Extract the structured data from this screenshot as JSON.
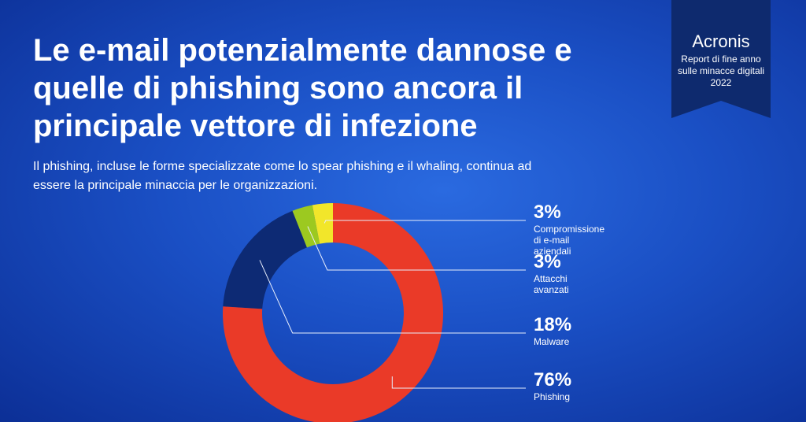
{
  "header": {
    "title": "Le e-mail potenzialmente dannose e quelle di phishing sono ancora il principale vettore di infezione",
    "subtitle": "Il phishing, incluse le forme specializzate come lo spear phishing e il whaling, continua ad essere la principale minaccia per le organizzazioni.",
    "brand": "Acronis",
    "report": "Report di fine anno sulle minacce digitali 2022"
  },
  "chart_data": {
    "type": "donut",
    "categories": [
      "Compromissione di e-mail aziendali",
      "Attacchi avanzati",
      "Malware",
      "Phishing"
    ],
    "values": [
      3,
      3,
      18,
      76
    ],
    "value_labels": [
      "3%",
      "3%",
      "18%",
      "76%"
    ],
    "colors": [
      "#f2e62a",
      "#9cc920",
      "#0d2a74",
      "#ea3a28"
    ]
  }
}
